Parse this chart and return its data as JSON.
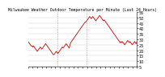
{
  "title": "Milwaukee Weather Outdoor Temperature per Minute (Last 24 Hours)",
  "line_color": "#cc0000",
  "bg_color": "#ffffff",
  "grid_color": "#cccccc",
  "vline_color": "#888888",
  "vline_positions": [
    0.27,
    0.54
  ],
  "ylim": [
    5,
    55
  ],
  "yticks": [
    5,
    10,
    15,
    20,
    25,
    30,
    35,
    40,
    45,
    50,
    55
  ],
  "x_points": [
    0,
    1,
    2,
    3,
    4,
    5,
    6,
    7,
    8,
    9,
    10,
    11,
    12,
    13,
    14,
    15,
    16,
    17,
    18,
    19,
    20,
    21,
    22,
    23,
    24,
    25,
    26,
    27,
    28,
    29,
    30,
    31,
    32,
    33,
    34,
    35,
    36,
    37,
    38,
    39,
    40,
    41,
    42,
    43,
    44,
    45,
    46,
    47,
    48,
    49,
    50,
    51,
    52,
    53,
    54,
    55,
    56,
    57,
    58,
    59,
    60,
    61,
    62,
    63,
    64,
    65,
    66,
    67,
    68,
    69,
    70,
    71,
    72,
    73,
    74,
    75,
    76,
    77,
    78,
    79,
    80,
    81,
    82,
    83,
    84,
    85,
    86,
    87,
    88,
    89,
    90,
    91,
    92,
    93,
    94,
    95,
    96,
    97,
    98,
    99,
    100,
    101,
    102,
    103,
    104,
    105,
    106,
    107,
    108,
    109,
    110,
    111,
    112,
    113,
    114,
    115,
    116,
    117,
    118,
    119,
    120,
    121,
    122,
    123,
    124,
    125,
    126,
    127,
    128,
    129,
    130,
    131,
    132,
    133,
    134,
    135,
    136,
    137,
    138,
    139,
    140,
    141,
    142,
    143
  ],
  "y_points": [
    28,
    27,
    26,
    25,
    24,
    24,
    23,
    24,
    23,
    22,
    21,
    20,
    19,
    20,
    21,
    22,
    23,
    22,
    21,
    22,
    23,
    24,
    25,
    26,
    25,
    24,
    23,
    22,
    21,
    20,
    19,
    18,
    17,
    16,
    16,
    17,
    18,
    19,
    18,
    17,
    18,
    19,
    20,
    21,
    22,
    23,
    22,
    23,
    24,
    25,
    26,
    25,
    24,
    23,
    22,
    25,
    27,
    28,
    29,
    30,
    31,
    32,
    33,
    34,
    35,
    36,
    37,
    38,
    39,
    40,
    41,
    42,
    43,
    44,
    45,
    46,
    46,
    47,
    48,
    49,
    50,
    51,
    50,
    49,
    50,
    51,
    50,
    49,
    48,
    47,
    48,
    49,
    50,
    51,
    52,
    51,
    50,
    49,
    48,
    47,
    48,
    47,
    46,
    45,
    44,
    43,
    42,
    41,
    40,
    39,
    38,
    37,
    36,
    35,
    34,
    33,
    32,
    31,
    30,
    29,
    28,
    27,
    28,
    27,
    28,
    27,
    26,
    25,
    26,
    27,
    28,
    29,
    28,
    27,
    28,
    27,
    26,
    25,
    26,
    27,
    28,
    27,
    26,
    28
  ],
  "num_xticks": 25,
  "title_fontsize": 3.5,
  "tick_fontsize": 3.5,
  "linewidth": 0.6
}
